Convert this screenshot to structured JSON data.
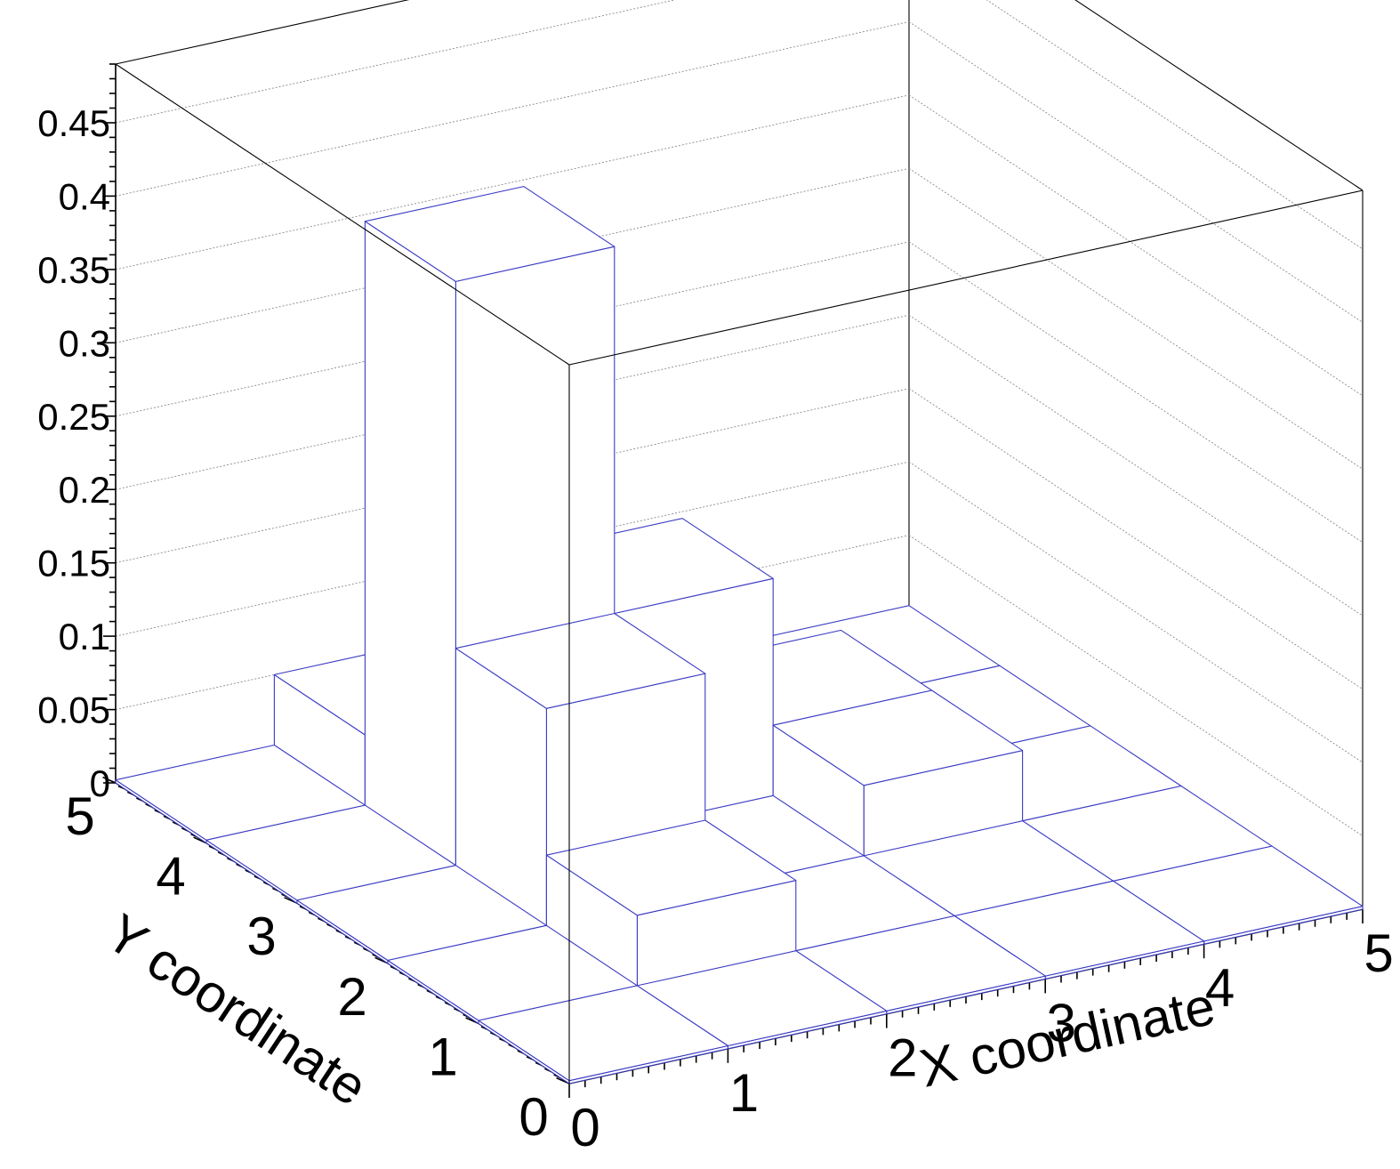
{
  "chart_data": {
    "type": "lego3d",
    "title": "",
    "xlabel": "X coordinate",
    "ylabel": "Y coordinate",
    "zlabel": "",
    "x_bins": [
      0,
      1,
      2,
      3,
      4,
      5
    ],
    "y_bins": [
      0,
      1,
      2,
      3,
      4,
      5
    ],
    "xlim": [
      0,
      5
    ],
    "ylim": [
      0,
      5
    ],
    "zlim": [
      0,
      0.49
    ],
    "x_tick_labels": [
      "0",
      "1",
      "2",
      "3",
      "4",
      "5"
    ],
    "y_tick_labels": [
      "0",
      "1",
      "2",
      "3",
      "4",
      "5"
    ],
    "z_tick_values": [
      0,
      0.05,
      0.1,
      0.15,
      0.2,
      0.25,
      0.3,
      0.35,
      0.4,
      0.45
    ],
    "z_tick_labels": [
      "0",
      "0.05",
      "0.1",
      "0.15",
      "0.2",
      "0.25",
      "0.3",
      "0.35",
      "0.4",
      "0.45"
    ],
    "grid": true,
    "bar_edge_color": "#3b3bc4",
    "bar_fill_color": "#ffffff",
    "values_by_row_y": [
      [
        0.0,
        0.0,
        0.0,
        0.0,
        0.0
      ],
      [
        0.0,
        0.05,
        0.0,
        0.0,
        0.0
      ],
      [
        0.0,
        0.15,
        0.0,
        0.05,
        0.0
      ],
      [
        0.0,
        0.4,
        0.15,
        0.05,
        0.0
      ],
      [
        0.0,
        0.05,
        0.05,
        0.0,
        0.0
      ]
    ]
  }
}
